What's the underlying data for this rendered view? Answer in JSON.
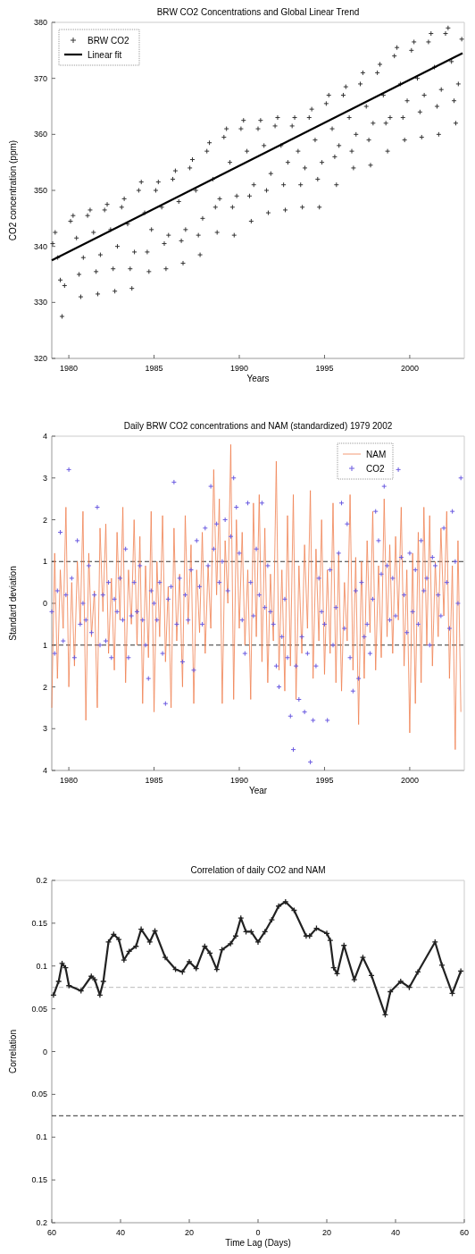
{
  "chart_data": [
    {
      "type": "scatter",
      "title": "BRW CO2 Concentrations and Global Linear Trend",
      "xlabel": "Years",
      "ylabel": "CO2 concentration (ppm)",
      "xlim": [
        1979,
        2003.2
      ],
      "xticks": [
        1980,
        1985,
        1990,
        1995,
        2000
      ],
      "ylim": [
        320,
        380
      ],
      "yticks": [
        320,
        330,
        340,
        350,
        360,
        370,
        380
      ],
      "legend": "top left",
      "series": [
        {
          "name": "BRW CO2",
          "marker": "cross",
          "color": "#333333",
          "x": [
            1979.05,
            1979.2,
            1979.35,
            1979.5,
            1979.6,
            1979.75,
            1980.1,
            1980.25,
            1980.45,
            1980.6,
            1980.7,
            1980.85,
            1981.1,
            1981.25,
            1981.45,
            1981.6,
            1981.7,
            1981.85,
            1982.1,
            1982.25,
            1982.45,
            1982.6,
            1982.7,
            1982.85,
            1983.1,
            1983.25,
            1983.45,
            1983.6,
            1983.7,
            1983.85,
            1984.1,
            1984.25,
            1984.45,
            1984.6,
            1984.7,
            1984.85,
            1985.1,
            1985.25,
            1985.45,
            1985.6,
            1985.7,
            1985.85,
            1986.1,
            1986.25,
            1986.45,
            1986.6,
            1986.7,
            1986.85,
            1987.1,
            1987.25,
            1987.45,
            1987.6,
            1987.7,
            1987.85,
            1988.1,
            1988.25,
            1988.45,
            1988.6,
            1988.7,
            1988.85,
            1989.1,
            1989.25,
            1989.45,
            1989.6,
            1989.7,
            1989.85,
            1990.1,
            1990.25,
            1990.45,
            1990.6,
            1990.7,
            1990.85,
            1991.1,
            1991.25,
            1991.45,
            1991.6,
            1991.7,
            1991.85,
            1992.1,
            1992.25,
            1992.45,
            1992.6,
            1992.7,
            1992.85,
            1993.1,
            1993.25,
            1993.45,
            1993.6,
            1993.7,
            1993.85,
            1994.1,
            1994.25,
            1994.45,
            1994.6,
            1994.7,
            1994.85,
            1995.1,
            1995.25,
            1995.45,
            1995.6,
            1995.7,
            1995.85,
            1996.1,
            1996.25,
            1996.45,
            1996.6,
            1996.7,
            1996.85,
            1997.1,
            1997.25,
            1997.45,
            1997.6,
            1997.7,
            1997.85,
            1998.1,
            1998.25,
            1998.45,
            1998.6,
            1998.7,
            1998.85,
            1999.1,
            1999.25,
            1999.45,
            1999.6,
            1999.7,
            1999.85,
            2000.1,
            2000.25,
            2000.45,
            2000.6,
            2000.7,
            2000.85,
            2001.1,
            2001.25,
            2001.45,
            2001.6,
            2001.7,
            2001.85,
            2002.1,
            2002.25,
            2002.45,
            2002.6,
            2002.7,
            2002.85,
            2003.05
          ],
          "values": [
            340.5,
            342.5,
            338,
            334,
            327.5,
            333,
            344.5,
            345.5,
            341.5,
            335,
            331,
            338,
            345.5,
            346.5,
            342.5,
            335.5,
            331.5,
            338.5,
            346.5,
            347.5,
            343,
            336,
            332,
            340,
            347,
            348.5,
            344,
            336,
            332.5,
            339,
            350,
            351.5,
            346,
            339,
            335.5,
            343,
            350,
            351.5,
            347,
            340.5,
            336,
            342,
            352,
            353.5,
            348,
            341,
            337,
            343,
            354,
            355.5,
            350,
            342,
            338.5,
            345,
            357,
            358.5,
            352,
            347,
            342.5,
            348.5,
            359.5,
            361,
            355,
            347,
            342,
            349,
            361,
            362.5,
            357,
            349,
            344.5,
            351,
            361,
            362.5,
            358,
            350,
            346,
            353,
            361.5,
            363,
            358,
            351,
            346.5,
            355,
            361.5,
            363,
            357,
            351,
            347,
            354,
            363,
            364.5,
            359,
            352,
            347,
            355,
            365.5,
            367,
            361,
            356,
            351,
            358,
            367,
            368.5,
            363,
            357,
            354,
            360,
            369,
            371,
            365,
            359,
            354.5,
            362,
            371,
            372.5,
            367,
            362,
            357,
            363,
            374,
            375.5,
            369,
            363,
            359,
            366,
            375,
            376.5,
            370,
            364,
            359.5,
            367,
            376.5,
            378,
            372,
            365,
            360,
            368,
            378,
            379,
            373,
            366,
            362,
            369,
            377
          ]
        },
        {
          "name": "Linear fit",
          "type": "line",
          "marker": "none",
          "color": "#000000",
          "x": [
            1979,
            2003.1
          ],
          "values": [
            337.5,
            374.5
          ]
        }
      ]
    },
    {
      "type": "line",
      "title": "Daily BRW CO2 concentrations and NAM (standardized) 1979 2002",
      "xlabel": "Year",
      "ylabel": "Standard deviation",
      "xlim": [
        1979,
        2003.2
      ],
      "xticks": [
        1980,
        1985,
        1990,
        1995,
        2000
      ],
      "ylim": [
        -4,
        4
      ],
      "yticks": [
        {
          "value": -4,
          "label": "4"
        },
        {
          "value": -3,
          "label": "3"
        },
        {
          "value": -2,
          "label": "2"
        },
        {
          "value": -1,
          "label": "1"
        },
        0,
        1,
        2,
        3,
        4
      ],
      "legend": "top right",
      "ref_lines": [
        {
          "axis": "y",
          "value": 1,
          "color": "#333333",
          "line_style": "dashed"
        },
        {
          "axis": "y",
          "value": -1,
          "color": "#333333",
          "line_style": "dashed"
        }
      ],
      "x": [
        1979,
        1979.17,
        1979.33,
        1979.5,
        1979.67,
        1979.83,
        1980,
        1980.17,
        1980.33,
        1980.5,
        1980.67,
        1980.83,
        1981,
        1981.17,
        1981.33,
        1981.5,
        1981.67,
        1981.83,
        1982,
        1982.17,
        1982.33,
        1982.5,
        1982.67,
        1982.83,
        1983,
        1983.17,
        1983.33,
        1983.5,
        1983.67,
        1983.83,
        1984,
        1984.17,
        1984.33,
        1984.5,
        1984.67,
        1984.83,
        1985,
        1985.17,
        1985.33,
        1985.5,
        1985.67,
        1985.83,
        1986,
        1986.17,
        1986.33,
        1986.5,
        1986.67,
        1986.83,
        1987,
        1987.17,
        1987.33,
        1987.5,
        1987.67,
        1987.83,
        1988,
        1988.17,
        1988.33,
        1988.5,
        1988.67,
        1988.83,
        1989,
        1989.17,
        1989.33,
        1989.5,
        1989.67,
        1989.83,
        1990,
        1990.17,
        1990.33,
        1990.5,
        1990.67,
        1990.83,
        1991,
        1991.17,
        1991.33,
        1991.5,
        1991.67,
        1991.83,
        1992,
        1992.17,
        1992.33,
        1992.5,
        1992.67,
        1992.83,
        1993,
        1993.17,
        1993.33,
        1993.5,
        1993.67,
        1993.83,
        1994,
        1994.17,
        1994.33,
        1994.5,
        1994.67,
        1994.83,
        1995,
        1995.17,
        1995.33,
        1995.5,
        1995.67,
        1995.83,
        1996,
        1996.17,
        1996.33,
        1996.5,
        1996.67,
        1996.83,
        1997,
        1997.17,
        1997.33,
        1997.5,
        1997.67,
        1997.83,
        1998,
        1998.17,
        1998.33,
        1998.5,
        1998.67,
        1998.83,
        1999,
        1999.17,
        1999.33,
        1999.5,
        1999.67,
        1999.83,
        2000,
        2000.17,
        2000.33,
        2000.5,
        2000.67,
        2000.83,
        2001,
        2001.17,
        2001.33,
        2001.5,
        2001.67,
        2001.83,
        2002,
        2002.17,
        2002.33,
        2002.5,
        2002.67,
        2002.83,
        2003
      ],
      "series": [
        {
          "name": "NAM",
          "marker": "none",
          "color": "#f08050",
          "values": [
            -2.5,
            1.2,
            -1.8,
            0.8,
            -0.6,
            2.3,
            -2.0,
            0.5,
            -1.5,
            1.0,
            -0.5,
            2.2,
            -2.8,
            1.2,
            -0.8,
            0.3,
            -2.5,
            1.8,
            -0.2,
            1.9,
            -1.2,
            0.6,
            -1.6,
            1.7,
            -0.4,
            2.3,
            -1.9,
            0.8,
            -0.5,
            2.0,
            -1.0,
            1.6,
            -2.4,
            0.9,
            -1.3,
            2.2,
            -2.6,
            1.0,
            -0.8,
            2.1,
            -1.4,
            0.4,
            -2.5,
            1.8,
            -0.9,
            0.7,
            -2.0,
            2.1,
            -0.5,
            1.4,
            -2.4,
            0.8,
            -0.7,
            1.7,
            -1.2,
            0.9,
            -0.6,
            3.2,
            0.2,
            2.5,
            -2.4,
            1.5,
            0.0,
            3.8,
            -2.3,
            2.0,
            -0.6,
            1.7,
            -1.0,
            0.8,
            -2.3,
            2.4,
            -0.8,
            2.6,
            -1.4,
            1.8,
            -1.9,
            0.7,
            -0.9,
            3.4,
            -1.6,
            0.8,
            -2.1,
            2.1,
            -1.5,
            2.6,
            -2.3,
            0.9,
            -1.2,
            1.4,
            -0.6,
            2.7,
            -1.8,
            1.3,
            -0.9,
            2.0,
            -1.7,
            0.8,
            -1.2,
            2.4,
            -1.9,
            1.2,
            -2.1,
            0.5,
            -0.9,
            2.6,
            -1.6,
            1.1,
            -2.9,
            1.0,
            -1.8,
            1.5,
            -0.7,
            2.2,
            -1.6,
            0.9,
            -1.3,
            2.5,
            -0.8,
            1.4,
            -1.2,
            1.6,
            -0.4,
            2.3,
            -1.5,
            0.8,
            -3.1,
            1.2,
            -2.4,
            1.7,
            -1.9,
            2.3,
            -1.0,
            2.1,
            -1.5,
            1.0,
            -0.8,
            1.8,
            -0.3,
            2.2,
            -1.8,
            0.9,
            -3.5,
            1.5,
            -2.6
          ]
        },
        {
          "name": "CO2",
          "type": "scatter",
          "marker": "cross",
          "color": "#6a5ae0",
          "values": [
            -0.2,
            -1.2,
            0.3,
            1.7,
            -0.9,
            0.2,
            3.2,
            0.6,
            -1.3,
            1.5,
            -0.5,
            0.0,
            -0.4,
            0.9,
            -0.7,
            0.2,
            2.3,
            -1.0,
            0.2,
            -0.9,
            0.5,
            -1.3,
            0.1,
            -0.2,
            0.6,
            -0.4,
            1.3,
            -1.3,
            -0.3,
            0.5,
            -0.2,
            0.9,
            -0.4,
            -1.0,
            -1.8,
            0.3,
            0.0,
            -0.4,
            0.5,
            -1.2,
            -2.4,
            0.1,
            0.4,
            2.9,
            -0.5,
            0.6,
            -1.4,
            0.2,
            -0.4,
            0.8,
            -1.6,
            1.5,
            0.4,
            -0.5,
            1.8,
            0.9,
            2.8,
            1.3,
            1.9,
            0.5,
            1.0,
            2.0,
            0.3,
            1.6,
            3.0,
            2.3,
            1.2,
            -0.4,
            -1.2,
            2.4,
            0.5,
            -0.3,
            1.3,
            0.2,
            2.4,
            -0.1,
            0.9,
            -0.2,
            -0.5,
            -1.5,
            -2.0,
            -0.8,
            0.1,
            -1.3,
            -2.7,
            -3.5,
            -1.5,
            -2.3,
            -0.8,
            -2.6,
            -1.2,
            -3.8,
            -2.8,
            -1.5,
            0.6,
            -0.2,
            -0.5,
            -2.8,
            0.8,
            -1.0,
            -0.1,
            1.2,
            2.4,
            -0.6,
            1.9,
            -1.3,
            -2.1,
            0.3,
            -1.8,
            0.5,
            -0.8,
            -0.5,
            -1.2,
            0.1,
            2.2,
            1.5,
            0.7,
            2.8,
            0.9,
            -0.4,
            0.6,
            -0.3,
            3.2,
            1.1,
            0.2,
            -0.7,
            1.2,
            -0.2,
            0.8,
            -0.5,
            1.5,
            0.3,
            0.6,
            -1.0,
            1.1,
            0.9,
            0.2,
            -0.3,
            1.8,
            0.5,
            -0.6,
            2.2,
            1.0,
            0.0,
            3.0
          ]
        }
      ]
    },
    {
      "type": "line",
      "title": "Correlation of daily CO2 and NAM",
      "xlabel": "Time Lag (Days)",
      "ylabel": "Correlation",
      "xlim": [
        -60,
        60
      ],
      "xticks": [
        {
          "value": -60,
          "label": "60"
        },
        {
          "value": -40,
          "label": "40"
        },
        {
          "value": -20,
          "label": "20"
        },
        0,
        20,
        40,
        60
      ],
      "ylim": [
        -0.2,
        0.2
      ],
      "yticks": [
        {
          "value": -0.2,
          "label": "0.2"
        },
        {
          "value": -0.15,
          "label": "0.15"
        },
        {
          "value": -0.1,
          "label": "0.1"
        },
        {
          "value": -0.05,
          "label": "0.05"
        },
        0,
        0.05,
        0.1,
        0.15,
        0.2
      ],
      "ref_lines": [
        {
          "axis": "y",
          "value": 0.075,
          "color": "#bbbbbb",
          "line_style": "dashed"
        },
        {
          "axis": "y",
          "value": -0.075,
          "color": "#333333",
          "line_style": "dashed"
        }
      ],
      "series": [
        {
          "marker": "cross",
          "color": "#222222",
          "x": [
            -59.5,
            -58,
            -57,
            -56,
            -55,
            -51.5,
            -48.5,
            -47.5,
            -46,
            -45,
            -43.5,
            -42,
            -40.5,
            -39,
            -37.5,
            -35.5,
            -34,
            -31.5,
            -30,
            -27,
            -24,
            -22,
            -20,
            -18,
            -15.5,
            -14,
            -12,
            -10.5,
            -8,
            -6.5,
            -5,
            -3.5,
            -2,
            0,
            2,
            4,
            6,
            8,
            10.5,
            14,
            15,
            17,
            20,
            21,
            22,
            23,
            25,
            28,
            30.5,
            33,
            37,
            38.5,
            41.5,
            44,
            46.5,
            51.5,
            53.5,
            56.5,
            59
          ],
          "values": [
            0.066,
            0.082,
            0.103,
            0.098,
            0.077,
            0.071,
            0.088,
            0.084,
            0.066,
            0.082,
            0.128,
            0.137,
            0.131,
            0.107,
            0.117,
            0.123,
            0.143,
            0.128,
            0.141,
            0.11,
            0.096,
            0.093,
            0.105,
            0.097,
            0.123,
            0.115,
            0.096,
            0.119,
            0.126,
            0.135,
            0.156,
            0.14,
            0.14,
            0.128,
            0.14,
            0.154,
            0.17,
            0.175,
            0.165,
            0.135,
            0.135,
            0.144,
            0.138,
            0.13,
            0.098,
            0.091,
            0.124,
            0.084,
            0.11,
            0.089,
            0.043,
            0.07,
            0.082,
            0.075,
            0.093,
            0.128,
            0.101,
            0.068,
            0.094
          ]
        }
      ]
    }
  ]
}
